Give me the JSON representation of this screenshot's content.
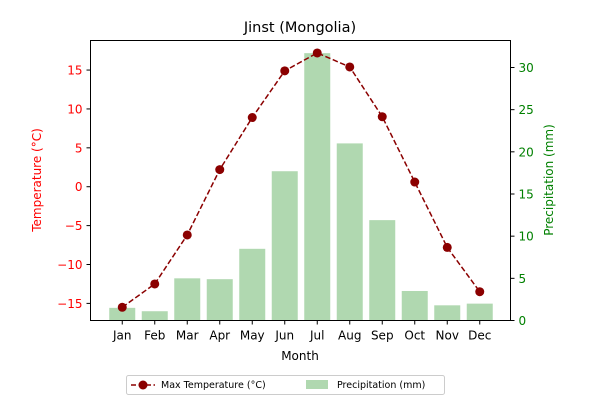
{
  "chart_data": {
    "type": "bar+line",
    "title": "Jinst (Mongolia)",
    "xlabel": "Month",
    "ylabel_left": "Temperature (°C)",
    "ylabel_right": "Precipitation (mm)",
    "categories": [
      "Jan",
      "Feb",
      "Mar",
      "Apr",
      "May",
      "Jun",
      "Jul",
      "Aug",
      "Sep",
      "Oct",
      "Nov",
      "Dec"
    ],
    "ylim_left": [
      -17.2,
      18.8
    ],
    "ylim_right": [
      0,
      33.2
    ],
    "yticks_left": [
      -15,
      -10,
      -5,
      0,
      5,
      10,
      15
    ],
    "yticks_right": [
      0,
      5,
      10,
      15,
      20,
      25,
      30
    ],
    "series": [
      {
        "name": "Max Temperature (°C)",
        "type": "line",
        "axis": "left",
        "values": [
          -15.5,
          -12.5,
          -6.2,
          2.2,
          8.9,
          14.9,
          17.2,
          15.4,
          9.0,
          0.6,
          -7.8,
          -13.5
        ]
      },
      {
        "name": "Precipitation (mm)",
        "type": "bar",
        "axis": "right",
        "values": [
          1.5,
          1.1,
          5.0,
          4.9,
          8.5,
          17.7,
          31.7,
          21.0,
          11.9,
          3.5,
          1.8,
          2.0
        ]
      }
    ],
    "grid": false,
    "legend_position": "bottom-center",
    "colors": {
      "left_axis": "#ff0000",
      "right_axis": "#008000",
      "line": "#8b0000",
      "bars": "#b0d8b0"
    }
  }
}
